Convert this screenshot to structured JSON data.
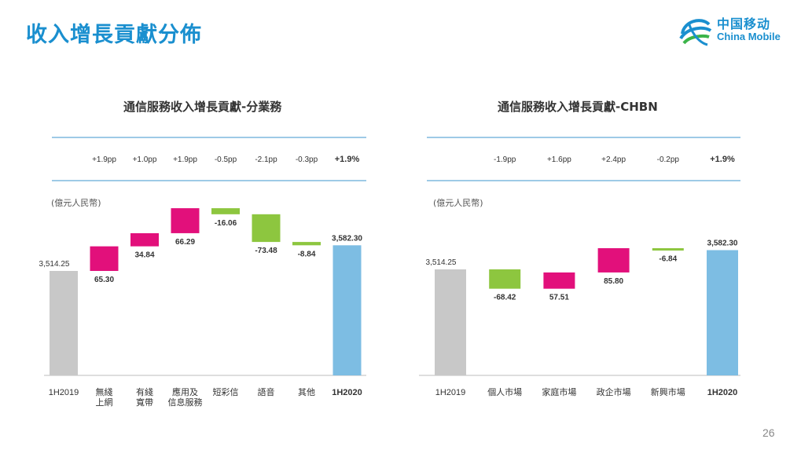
{
  "header": {
    "title": "收入增長貢獻分佈",
    "page_number": "26"
  },
  "logo": {
    "cn": "中国移动",
    "en": "China Mobile"
  },
  "colors": {
    "base": "#c8c8c8",
    "total": "#7dbde3",
    "positive": "#e2107b",
    "negative": "#8dc63f",
    "rule": "#7fb8dd"
  },
  "chart_data": [
    {
      "type": "bar",
      "subtype": "waterfall",
      "title": "通信服務收入增長貢獻-分業務",
      "unit_label": "(億元人民幣)",
      "categories": [
        [
          "1H2019"
        ],
        [
          "無綫",
          "上網"
        ],
        [
          "有綫",
          "寬帶"
        ],
        [
          "應用及",
          "信息服務"
        ],
        [
          "短彩信"
        ],
        [
          "語音"
        ],
        [
          "其他"
        ],
        [
          "1H2020"
        ]
      ],
      "pp_labels": [
        "",
        "+1.9pp",
        "+1.0pp",
        "+1.9pp",
        "-0.5pp",
        "-2.1pp",
        "-0.3pp",
        "+1.9%"
      ],
      "values": [
        3514.25,
        65.3,
        34.84,
        66.29,
        -16.06,
        -73.48,
        -8.84,
        3582.3
      ],
      "value_labels": [
        "3,514.25",
        "65.30",
        "34.84",
        "66.29",
        "-16.06",
        "-73.48",
        "-8.84",
        "3,582.30"
      ],
      "kinds": [
        "base",
        "pos",
        "pos",
        "pos",
        "neg",
        "neg",
        "neg",
        "total"
      ]
    },
    {
      "type": "bar",
      "subtype": "waterfall",
      "title": "通信服務收入增長貢獻-CHBN",
      "unit_label": "(億元人民幣)",
      "categories": [
        [
          "1H2019"
        ],
        [
          "個人市場"
        ],
        [
          "家庭市場"
        ],
        [
          "政企市場"
        ],
        [
          "新興市場"
        ],
        [
          "1H2020"
        ]
      ],
      "pp_labels": [
        "",
        "-1.9pp",
        "+1.6pp",
        "+2.4pp",
        "-0.2pp",
        "+1.9%"
      ],
      "values": [
        3514.25,
        -68.42,
        57.51,
        85.8,
        -6.84,
        3582.3
      ],
      "value_labels": [
        "3,514.25",
        "-68.42",
        "57.51",
        "85.80",
        "-6.84",
        "3,582.30"
      ],
      "kinds": [
        "base",
        "neg",
        "pos",
        "pos",
        "neg",
        "total"
      ]
    }
  ]
}
